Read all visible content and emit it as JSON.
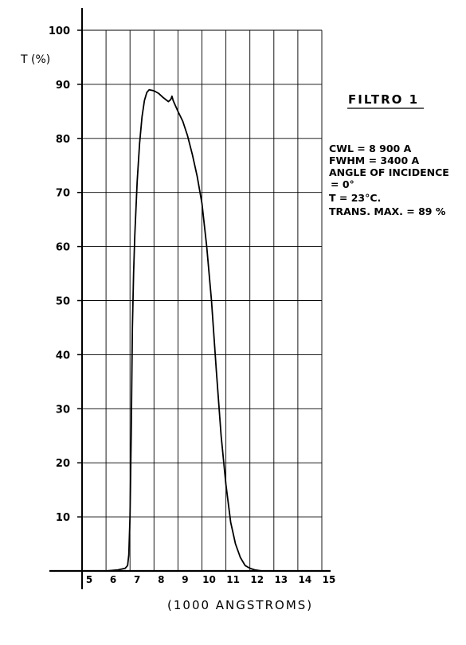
{
  "chart_data": {
    "type": "line",
    "title": "FILTRO 1",
    "xlabel": "(1000 ANGSTROMS)",
    "ylabel": "T (%)",
    "xlim": [
      5,
      15
    ],
    "ylim": [
      0,
      100
    ],
    "x_ticks": [
      "5",
      "6",
      "7",
      "8",
      "9",
      "10",
      "11",
      "12",
      "13",
      "14",
      "15"
    ],
    "y_ticks": [
      "10",
      "20",
      "30",
      "40",
      "50",
      "60",
      "70",
      "80",
      "90",
      "100"
    ],
    "grid": true,
    "annotations": [
      "CWL = 8 900 A",
      "FWHM = 3400 A",
      "ANGLE OF INCIDENCE",
      "= 0°",
      "T = 23°C.",
      "TRANS. MAX. = 89 %"
    ],
    "series": [
      {
        "x": [
          5.0,
          6.0,
          6.5,
          6.8,
          6.9,
          6.95,
          7.0,
          7.05,
          7.1,
          7.15,
          7.2,
          7.3,
          7.4,
          7.5,
          7.6,
          7.7,
          7.8,
          8.0,
          8.2,
          8.4,
          8.6,
          8.7,
          8.75,
          8.8,
          8.85,
          8.9,
          9.0,
          9.2,
          9.4,
          9.6,
          9.8,
          10.0,
          10.2,
          10.4,
          10.6,
          10.8,
          11.0,
          11.2,
          11.4,
          11.6,
          11.8,
          12.0,
          12.2,
          12.5,
          13.0,
          14.0,
          15.0
        ],
        "y": [
          0,
          0,
          0.2,
          0.5,
          1,
          3,
          10,
          25,
          45,
          55,
          62,
          72,
          79,
          84,
          87,
          88.5,
          89,
          88.8,
          88.3,
          87.5,
          86.8,
          87.2,
          87.8,
          87,
          86.5,
          86,
          85,
          83.2,
          80.5,
          77,
          73,
          68,
          60,
          50,
          37,
          25,
          16,
          9,
          5,
          2.5,
          1,
          0.5,
          0.2,
          0,
          0,
          0,
          0
        ]
      }
    ]
  }
}
